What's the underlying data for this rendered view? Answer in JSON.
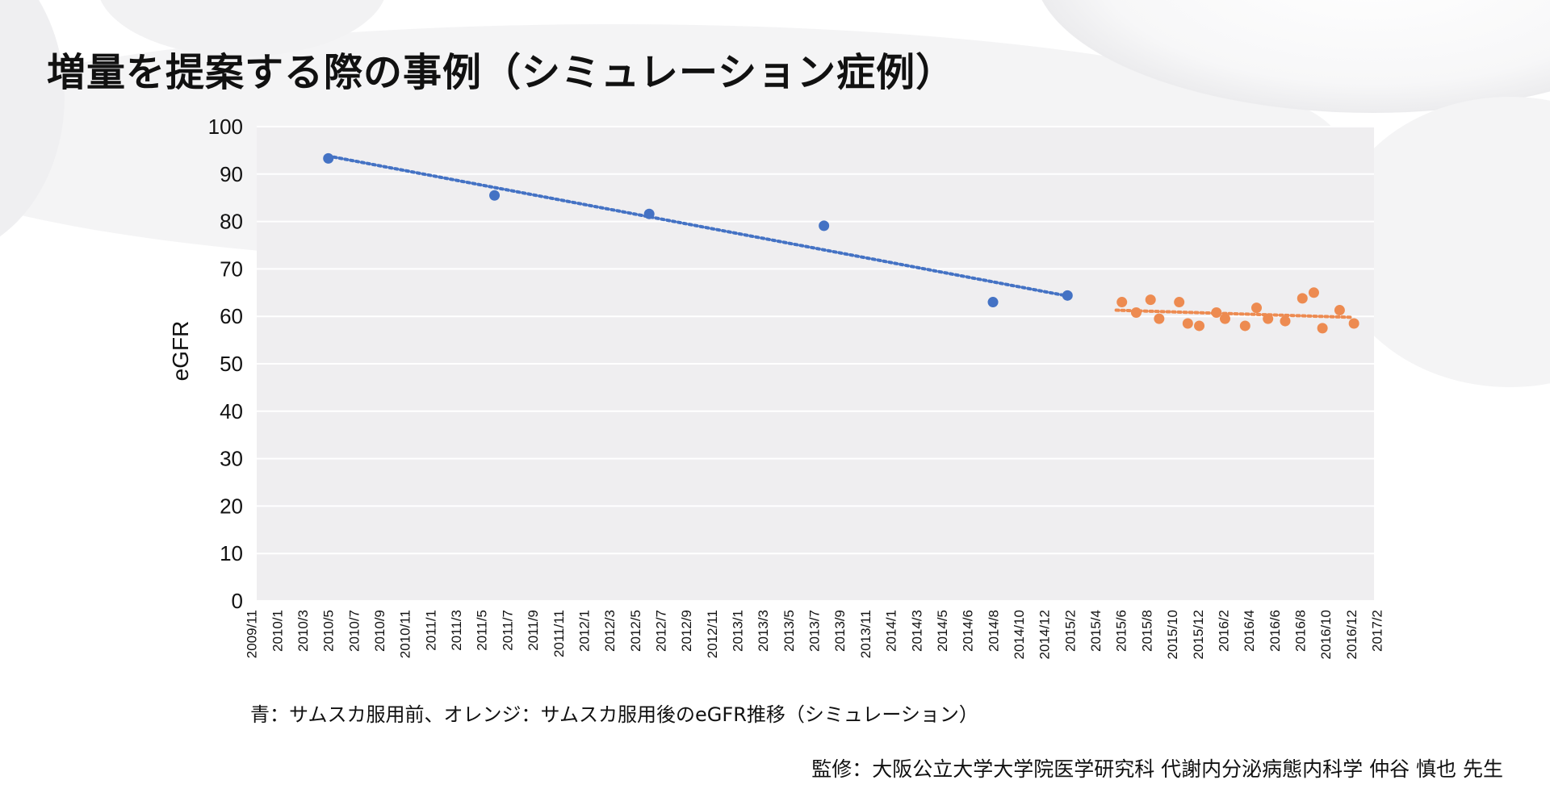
{
  "page": {
    "title": "増量を提案する際の事例（シミュレーション症例）",
    "caption": "青：サムスカ服用前、オレンジ：サムスカ服用後のeGFR推移（シミュレーション）",
    "credit": "監修：大阪公立大学大学院医学研究科 代謝内分泌病態内科学 仲谷 慎也 先生"
  },
  "chart_data": {
    "type": "scatter",
    "title": "増量を提案する際の事例（シミュレーション症例）",
    "xlabel": "",
    "ylabel": "eGFR",
    "ylim": [
      0,
      100
    ],
    "yticks": [
      0,
      10,
      20,
      30,
      40,
      50,
      60,
      70,
      80,
      90,
      100
    ],
    "xrange_months": [
      0,
      39
    ],
    "grid": true,
    "xtick_labels": [
      "2009/11",
      "2010/1",
      "2010/3",
      "2010/5",
      "2010/7",
      "2010/9",
      "2010/11",
      "2011/1",
      "2011/3",
      "2011/5",
      "2011/7",
      "2011/9",
      "2011/11",
      "2012/1",
      "2012/3",
      "2012/5",
      "2012/7",
      "2012/9",
      "2012/11",
      "2013/1",
      "2013/3",
      "2013/5",
      "2013/7",
      "2013/9",
      "2013/11",
      "2014/1",
      "2014/3",
      "2014/5",
      "2014/6",
      "2014/8",
      "2014/10",
      "2014/12",
      "2015/2",
      "2015/4",
      "2015/6",
      "2015/8",
      "2015/10",
      "2015/12",
      "2016/2",
      "2016/4",
      "2016/6",
      "2016/8",
      "2016/10",
      "2016/12",
      "2017/2"
    ],
    "series": [
      {
        "name": "サムスカ服用前",
        "color": "#4472c4",
        "points": [
          [
            2.5,
            93.3
          ],
          [
            8.3,
            85.5
          ],
          [
            13.7,
            81.6
          ],
          [
            19.8,
            79.1
          ],
          [
            25.7,
            63.0
          ],
          [
            28.3,
            64.4
          ]
        ],
        "trend": [
          [
            2.5,
            93.8
          ],
          [
            28.3,
            64.3
          ]
        ]
      },
      {
        "name": "サムスカ服用後",
        "color": "#ed8b51",
        "points": [
          [
            30.2,
            63.0
          ],
          [
            30.7,
            60.8
          ],
          [
            31.2,
            63.5
          ],
          [
            31.5,
            59.5
          ],
          [
            32.2,
            63.0
          ],
          [
            32.5,
            58.5
          ],
          [
            32.9,
            58.0
          ],
          [
            33.5,
            60.8
          ],
          [
            33.8,
            59.5
          ],
          [
            34.5,
            58.0
          ],
          [
            34.9,
            61.8
          ],
          [
            35.3,
            59.5
          ],
          [
            35.9,
            59.0
          ],
          [
            36.5,
            63.8
          ],
          [
            36.9,
            65.0
          ],
          [
            37.2,
            57.5
          ],
          [
            37.8,
            61.3
          ],
          [
            38.3,
            58.5
          ]
        ],
        "trend": [
          [
            30.0,
            61.3
          ],
          [
            38.2,
            59.8
          ]
        ]
      }
    ]
  }
}
